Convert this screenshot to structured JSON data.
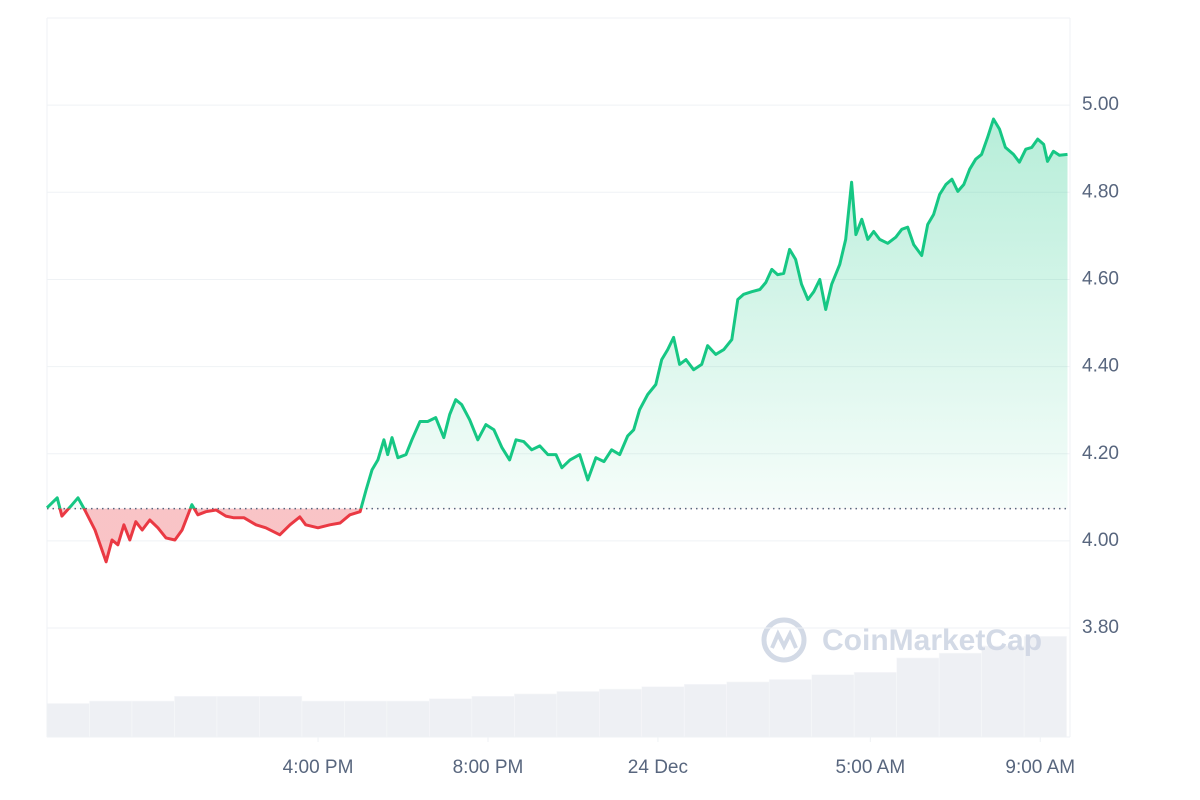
{
  "chart_data": {
    "type": "line",
    "x": [
      9.62,
      9.86,
      9.97,
      10.21,
      10.35,
      10.51,
      10.75,
      11.01,
      11.15,
      11.29,
      11.43,
      11.57,
      11.71,
      11.86,
      12.04,
      12.23,
      12.42,
      12.63,
      12.8,
      13.03,
      13.17,
      13.36,
      13.6,
      13.83,
      14.02,
      14.26,
      14.54,
      14.77,
      15.1,
      15.34,
      15.57,
      15.71,
      16.0,
      16.28,
      16.52,
      16.75,
      16.99,
      17.13,
      17.27,
      17.41,
      17.55,
      17.64,
      17.74,
      17.88,
      18.07,
      18.21,
      18.4,
      18.58,
      18.77,
      18.96,
      19.1,
      19.24,
      19.38,
      19.57,
      19.76,
      19.95,
      20.14,
      20.33,
      20.51,
      20.66,
      20.84,
      21.03,
      21.22,
      21.41,
      21.6,
      21.74,
      21.93,
      22.16,
      22.35,
      22.54,
      22.73,
      22.91,
      23.1,
      23.29,
      23.43,
      23.57,
      23.76,
      23.95,
      24.09,
      24.23,
      24.37,
      24.51,
      24.66,
      24.84,
      25.03,
      25.17,
      25.36,
      25.55,
      25.74,
      25.88,
      26.02,
      26.21,
      26.4,
      26.54,
      26.68,
      26.82,
      26.96,
      27.1,
      27.24,
      27.38,
      27.53,
      27.67,
      27.81,
      27.95,
      28.09,
      28.28,
      28.42,
      28.56,
      28.66,
      28.8,
      28.94,
      29.08,
      29.22,
      29.41,
      29.6,
      29.74,
      29.88,
      30.02,
      30.21,
      30.35,
      30.49,
      30.63,
      30.78,
      30.92,
      31.06,
      31.2,
      31.34,
      31.48,
      31.62,
      31.76,
      31.9,
      32.04,
      32.18,
      32.37,
      32.51,
      32.66,
      32.8,
      32.94,
      33.08,
      33.17,
      33.31,
      33.45,
      33.64
    ],
    "series": [
      {
        "color": "#16c784",
        "color_below": "#ea3943",
        "values": [
          4.076,
          4.099,
          4.057,
          4.083,
          4.099,
          4.071,
          4.025,
          3.952,
          4.002,
          3.991,
          4.037,
          4.002,
          4.044,
          4.025,
          4.048,
          4.03,
          4.007,
          4.002,
          4.025,
          4.083,
          4.06,
          4.067,
          4.071,
          4.057,
          4.053,
          4.053,
          4.037,
          4.03,
          4.014,
          4.037,
          4.055,
          4.037,
          4.03,
          4.037,
          4.041,
          4.06,
          4.067,
          4.117,
          4.163,
          4.186,
          4.232,
          4.198,
          4.237,
          4.191,
          4.198,
          4.232,
          4.274,
          4.274,
          4.283,
          4.237,
          4.29,
          4.324,
          4.313,
          4.278,
          4.232,
          4.267,
          4.255,
          4.214,
          4.186,
          4.232,
          4.228,
          4.209,
          4.218,
          4.198,
          4.198,
          4.168,
          4.186,
          4.198,
          4.14,
          4.191,
          4.182,
          4.209,
          4.198,
          4.241,
          4.255,
          4.301,
          4.336,
          4.359,
          4.416,
          4.439,
          4.467,
          4.405,
          4.416,
          4.393,
          4.405,
          4.448,
          4.428,
          4.439,
          4.462,
          4.554,
          4.566,
          4.572,
          4.577,
          4.593,
          4.623,
          4.611,
          4.614,
          4.669,
          4.646,
          4.589,
          4.554,
          4.572,
          4.6,
          4.531,
          4.589,
          4.634,
          4.692,
          4.823,
          4.703,
          4.738,
          4.692,
          4.71,
          4.692,
          4.683,
          4.697,
          4.715,
          4.72,
          4.68,
          4.655,
          4.726,
          4.749,
          4.795,
          4.818,
          4.83,
          4.802,
          4.818,
          4.853,
          4.876,
          4.887,
          4.926,
          4.968,
          4.945,
          4.903,
          4.887,
          4.869,
          4.899,
          4.903,
          4.922,
          4.91,
          4.871,
          4.894,
          4.885,
          4.887
        ]
      }
    ],
    "reference_line": 4.074,
    "volume": {
      "color": "#eef0f4",
      "x": [
        10.12,
        11.12,
        12.12,
        13.12,
        14.12,
        15.12,
        16.12,
        17.12,
        18.12,
        19.12,
        20.12,
        21.12,
        22.12,
        23.12,
        24.12,
        25.12,
        26.12,
        27.12,
        28.12,
        29.12,
        30.12,
        31.12,
        32.12,
        33.12
      ],
      "values": [
        14,
        15,
        15,
        17,
        17,
        17,
        15,
        15,
        15,
        16,
        17,
        18,
        19,
        20,
        21,
        22,
        23,
        24,
        26,
        27,
        33,
        35,
        38,
        42
      ],
      "ylim": [
        0,
        300
      ]
    },
    "xlim": [
      9.62,
      33.7
    ],
    "xticks": [
      {
        "value": 16,
        "label": "4:00 PM"
      },
      {
        "value": 20,
        "label": "8:00 PM"
      },
      {
        "value": 24,
        "label": "24 Dec"
      },
      {
        "value": 29,
        "label": "5:00 AM"
      },
      {
        "value": 33,
        "label": "9:00 AM"
      }
    ],
    "ylim": [
      3.55,
      5.2
    ],
    "yticks": [
      {
        "value": 3.8,
        "label": "3.80"
      },
      {
        "value": 4.0,
        "label": "4.00"
      },
      {
        "value": 4.2,
        "label": "4.20"
      },
      {
        "value": 4.4,
        "label": "4.40"
      },
      {
        "value": 4.6,
        "label": "4.60"
      },
      {
        "value": 4.8,
        "label": "4.80"
      },
      {
        "value": 5.0,
        "label": "5.00"
      }
    ],
    "grid": true,
    "watermark": "CoinMarketCap"
  }
}
